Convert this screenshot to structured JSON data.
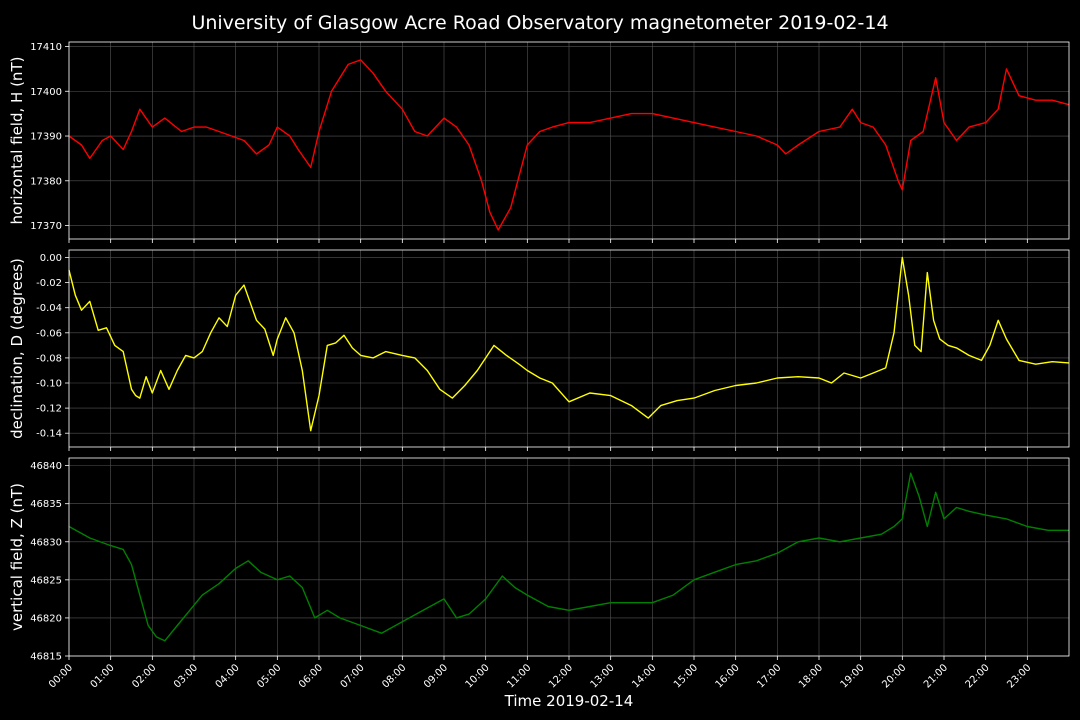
{
  "title": "University of Glasgow Acre Road Observatory magnetometer 2019-02-14",
  "xlabel": "Time 2019-02-14",
  "x_ticks": [
    "00:00",
    "01:00",
    "02:00",
    "03:00",
    "04:00",
    "05:00",
    "06:00",
    "07:00",
    "08:00",
    "09:00",
    "10:00",
    "11:00",
    "12:00",
    "13:00",
    "14:00",
    "15:00",
    "16:00",
    "17:00",
    "18:00",
    "19:00",
    "20:00",
    "21:00",
    "22:00",
    "23:00"
  ],
  "colors": {
    "background": "#000000",
    "H": "#ff0000",
    "D": "#ffff00",
    "Z": "#008000",
    "axes": "#ffffff",
    "grid": "#555555"
  },
  "chart_data": [
    {
      "type": "line",
      "name": "H",
      "ylabel": "horizontal field, H (nT)",
      "xlim": [
        0,
        24
      ],
      "ylim": [
        17367,
        17411
      ],
      "yticks": [
        17370,
        17380,
        17390,
        17400,
        17410
      ],
      "grid": true,
      "x": [
        0,
        0.3,
        0.5,
        0.8,
        1.0,
        1.3,
        1.5,
        1.7,
        2.0,
        2.3,
        2.7,
        3.0,
        3.3,
        3.6,
        3.9,
        4.2,
        4.5,
        4.8,
        5.0,
        5.3,
        5.5,
        5.8,
        6.0,
        6.3,
        6.7,
        7.0,
        7.3,
        7.6,
        8.0,
        8.3,
        8.6,
        9.0,
        9.3,
        9.6,
        9.9,
        10.1,
        10.3,
        10.6,
        10.8,
        11.0,
        11.3,
        11.6,
        12.0,
        12.5,
        13.0,
        13.5,
        14.0,
        14.5,
        15.0,
        15.5,
        16.0,
        16.5,
        17.0,
        17.2,
        17.5,
        18.0,
        18.5,
        18.8,
        19.0,
        19.3,
        19.6,
        19.9,
        20.0,
        20.2,
        20.5,
        20.8,
        21.0,
        21.3,
        21.6,
        22.0,
        22.3,
        22.5,
        22.8,
        23.2,
        23.6,
        24.0
      ],
      "values": [
        17390,
        17388,
        17385,
        17389,
        17390,
        17387,
        17391,
        17396,
        17392,
        17394,
        17391,
        17392,
        17392,
        17391,
        17390,
        17389,
        17386,
        17388,
        17392,
        17390,
        17387,
        17383,
        17391,
        17400,
        17406,
        17407,
        17404,
        17400,
        17396,
        17391,
        17390,
        17394,
        17392,
        17388,
        17380,
        17373,
        17369,
        17374,
        17381,
        17388,
        17391,
        17392,
        17393,
        17393,
        17394,
        17395,
        17395,
        17394,
        17393,
        17392,
        17391,
        17390,
        17388,
        17386,
        17388,
        17391,
        17392,
        17396,
        17393,
        17392,
        17388,
        17380,
        17378,
        17389,
        17391,
        17403,
        17393,
        17389,
        17392,
        17393,
        17396,
        17405,
        17399,
        17398,
        17398,
        17397
      ]
    },
    {
      "type": "line",
      "name": "D",
      "ylabel": "declination, D (degrees)",
      "xlim": [
        0,
        24
      ],
      "ylim": [
        -0.151,
        0.006
      ],
      "yticks": [
        -0.14,
        -0.12,
        -0.1,
        -0.08,
        -0.06,
        -0.04,
        -0.02,
        0.0
      ],
      "grid": true,
      "x": [
        0,
        0.15,
        0.3,
        0.5,
        0.7,
        0.9,
        1.1,
        1.3,
        1.5,
        1.6,
        1.7,
        1.85,
        2.0,
        2.2,
        2.4,
        2.6,
        2.8,
        3.0,
        3.2,
        3.4,
        3.6,
        3.8,
        4.0,
        4.2,
        4.5,
        4.7,
        4.9,
        5.0,
        5.2,
        5.4,
        5.6,
        5.8,
        6.0,
        6.2,
        6.4,
        6.6,
        6.8,
        7.0,
        7.3,
        7.6,
        8.0,
        8.3,
        8.6,
        8.9,
        9.2,
        9.5,
        9.8,
        10.2,
        10.5,
        10.8,
        11.0,
        11.3,
        11.6,
        12.0,
        12.5,
        13.0,
        13.5,
        13.9,
        14.2,
        14.6,
        15.0,
        15.5,
        16.0,
        16.5,
        17.0,
        17.5,
        18.0,
        18.3,
        18.6,
        19.0,
        19.3,
        19.6,
        19.8,
        20.0,
        20.15,
        20.3,
        20.45,
        20.6,
        20.75,
        20.9,
        21.1,
        21.3,
        21.6,
        21.9,
        22.1,
        22.3,
        22.5,
        22.8,
        23.2,
        23.6,
        24.0
      ],
      "values": [
        -0.01,
        -0.03,
        -0.042,
        -0.035,
        -0.058,
        -0.056,
        -0.07,
        -0.075,
        -0.105,
        -0.11,
        -0.112,
        -0.095,
        -0.108,
        -0.09,
        -0.105,
        -0.09,
        -0.078,
        -0.08,
        -0.075,
        -0.06,
        -0.048,
        -0.055,
        -0.03,
        -0.022,
        -0.05,
        -0.057,
        -0.078,
        -0.065,
        -0.048,
        -0.06,
        -0.09,
        -0.138,
        -0.11,
        -0.07,
        -0.068,
        -0.062,
        -0.072,
        -0.078,
        -0.08,
        -0.075,
        -0.078,
        -0.08,
        -0.09,
        -0.105,
        -0.112,
        -0.102,
        -0.09,
        -0.07,
        -0.078,
        -0.085,
        -0.09,
        -0.096,
        -0.1,
        -0.115,
        -0.108,
        -0.11,
        -0.118,
        -0.128,
        -0.118,
        -0.114,
        -0.112,
        -0.106,
        -0.102,
        -0.1,
        -0.096,
        -0.095,
        -0.096,
        -0.1,
        -0.092,
        -0.096,
        -0.092,
        -0.088,
        -0.06,
        0.0,
        -0.03,
        -0.07,
        -0.075,
        -0.012,
        -0.05,
        -0.065,
        -0.07,
        -0.072,
        -0.078,
        -0.082,
        -0.07,
        -0.05,
        -0.065,
        -0.082,
        -0.085,
        -0.083,
        -0.084
      ]
    },
    {
      "type": "line",
      "name": "Z",
      "ylabel": "vertical field, Z (nT)",
      "xlim": [
        0,
        24
      ],
      "ylim": [
        46815,
        46841
      ],
      "yticks": [
        46815,
        46820,
        46825,
        46830,
        46835,
        46840
      ],
      "grid": true,
      "x": [
        0,
        0.5,
        1.0,
        1.3,
        1.5,
        1.7,
        1.9,
        2.1,
        2.3,
        2.6,
        2.9,
        3.2,
        3.6,
        4.0,
        4.3,
        4.6,
        5.0,
        5.3,
        5.6,
        5.9,
        6.2,
        6.5,
        7.0,
        7.5,
        8.0,
        8.5,
        9.0,
        9.3,
        9.6,
        10.0,
        10.4,
        10.7,
        11.0,
        11.5,
        12.0,
        12.5,
        13.0,
        13.5,
        14.0,
        14.5,
        15.0,
        15.5,
        16.0,
        16.5,
        17.0,
        17.5,
        18.0,
        18.5,
        19.0,
        19.5,
        19.8,
        20.0,
        20.2,
        20.4,
        20.6,
        20.8,
        21.0,
        21.3,
        21.6,
        22.0,
        22.5,
        23.0,
        23.5,
        24.0
      ],
      "values": [
        46832,
        46830.5,
        46829.5,
        46829,
        46827,
        46823,
        46819,
        46817.5,
        46817,
        46819,
        46821,
        46823,
        46824.5,
        46826.5,
        46827.5,
        46826,
        46825,
        46825.5,
        46824,
        46820,
        46821,
        46820,
        46819,
        46818,
        46819.5,
        46821,
        46822.5,
        46820,
        46820.5,
        46822.5,
        46825.5,
        46824,
        46823,
        46821.5,
        46821,
        46821.5,
        46822,
        46822,
        46822,
        46823,
        46825,
        46826,
        46827,
        46827.5,
        46828.5,
        46830,
        46830.5,
        46830,
        46830.5,
        46831,
        46832,
        46833,
        46839,
        46836,
        46832,
        46836.5,
        46833,
        46834.5,
        46834,
        46833.5,
        46833,
        46832,
        46831.5,
        46831.5
      ]
    }
  ]
}
